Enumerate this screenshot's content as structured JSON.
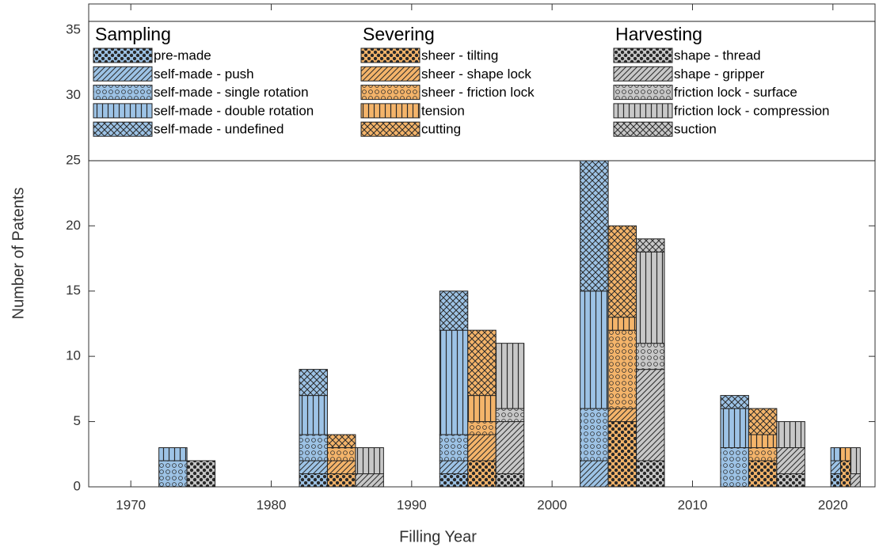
{
  "chart_data": {
    "type": "bar",
    "stacked": true,
    "xlabel": "Filling Year",
    "ylabel": "Number of Patents",
    "xlim": [
      1967,
      2023
    ],
    "xticks": [
      1970,
      1980,
      1990,
      2000,
      2010,
      2020
    ],
    "ylim": [
      0,
      37
    ],
    "yticks": [
      0,
      5,
      10,
      15,
      20,
      25,
      30,
      35
    ],
    "grid": false,
    "groups": [
      {
        "name": "Sampling",
        "color": "#9dc3e6",
        "x": [
          1973,
          1983,
          1993,
          2003,
          2013,
          2020.2
        ],
        "series": [
          {
            "name": "pre-made",
            "values": [
              0,
              1,
              1,
              0,
              0,
              1
            ]
          },
          {
            "name": "self-made - push",
            "values": [
              0,
              1,
              1,
              2,
              0,
              1
            ]
          },
          {
            "name": "self-made - single rotation",
            "values": [
              2,
              2,
              2,
              4,
              3,
              0
            ]
          },
          {
            "name": "self-made - double rotation",
            "values": [
              1,
              3,
              8,
              9,
              3,
              1
            ]
          },
          {
            "name": "self-made - undefined",
            "values": [
              0,
              2,
              3,
              10,
              1,
              0
            ]
          }
        ]
      },
      {
        "name": "Severing",
        "color": "#f4b46a",
        "x": [
          1975,
          1985,
          1995,
          2005,
          2015,
          2020.9
        ],
        "series": [
          {
            "name": "sheer - tilting",
            "values": [
              0,
              1,
              2,
              5,
              2,
              2
            ]
          },
          {
            "name": "sheer - shape lock",
            "values": [
              0,
              1,
              2,
              1,
              0,
              0
            ]
          },
          {
            "name": "sheer - friction lock",
            "values": [
              0,
              1,
              1,
              6,
              1,
              0
            ]
          },
          {
            "name": "tension",
            "values": [
              0,
              0,
              2,
              1,
              1,
              1
            ]
          },
          {
            "name": "cutting",
            "values": [
              0,
              1,
              5,
              7,
              2,
              0
            ]
          }
        ]
      },
      {
        "name": "Harvesting",
        "color": "#c8c8c8",
        "x": [
          1975,
          1987,
          1997,
          2007,
          2017,
          2021.6
        ],
        "series": [
          {
            "name": "shape - thread",
            "values": [
              2,
              0,
              1,
              2,
              1,
              0
            ]
          },
          {
            "name": "shape - gripper",
            "values": [
              0,
              1,
              4,
              7,
              2,
              1
            ]
          },
          {
            "name": "friction lock - surface",
            "values": [
              0,
              0,
              1,
              2,
              0,
              0
            ]
          },
          {
            "name": "friction lock - compression",
            "values": [
              0,
              2,
              5,
              7,
              2,
              2
            ]
          },
          {
            "name": "suction",
            "values": [
              0,
              0,
              0,
              1,
              0,
              0
            ]
          }
        ]
      }
    ]
  }
}
